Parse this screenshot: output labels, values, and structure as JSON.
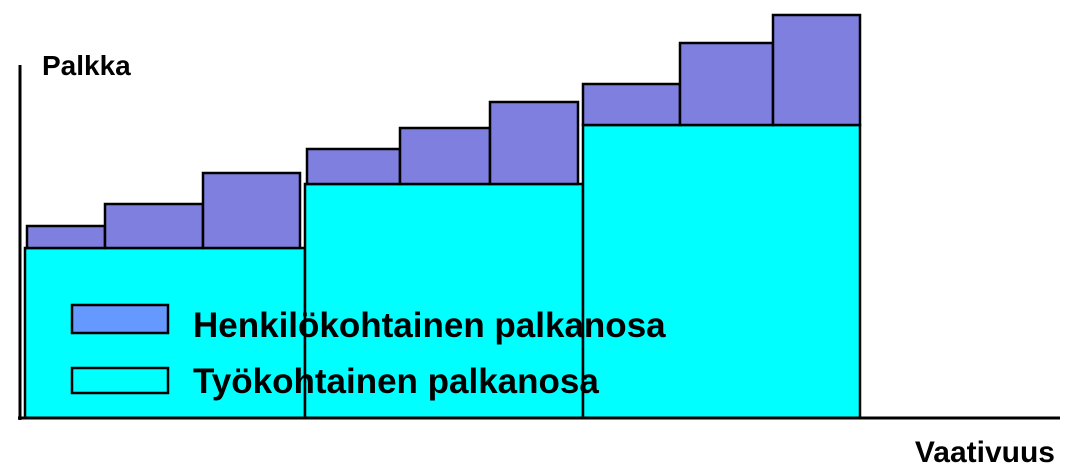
{
  "y_axis_label": "Palkka",
  "x_axis_label": "Vaativuus",
  "legend": {
    "items": [
      {
        "label": "Henkilökohtainen palkanosa"
      },
      {
        "label": "Työkohtainen palkanosa"
      }
    ]
  }
}
